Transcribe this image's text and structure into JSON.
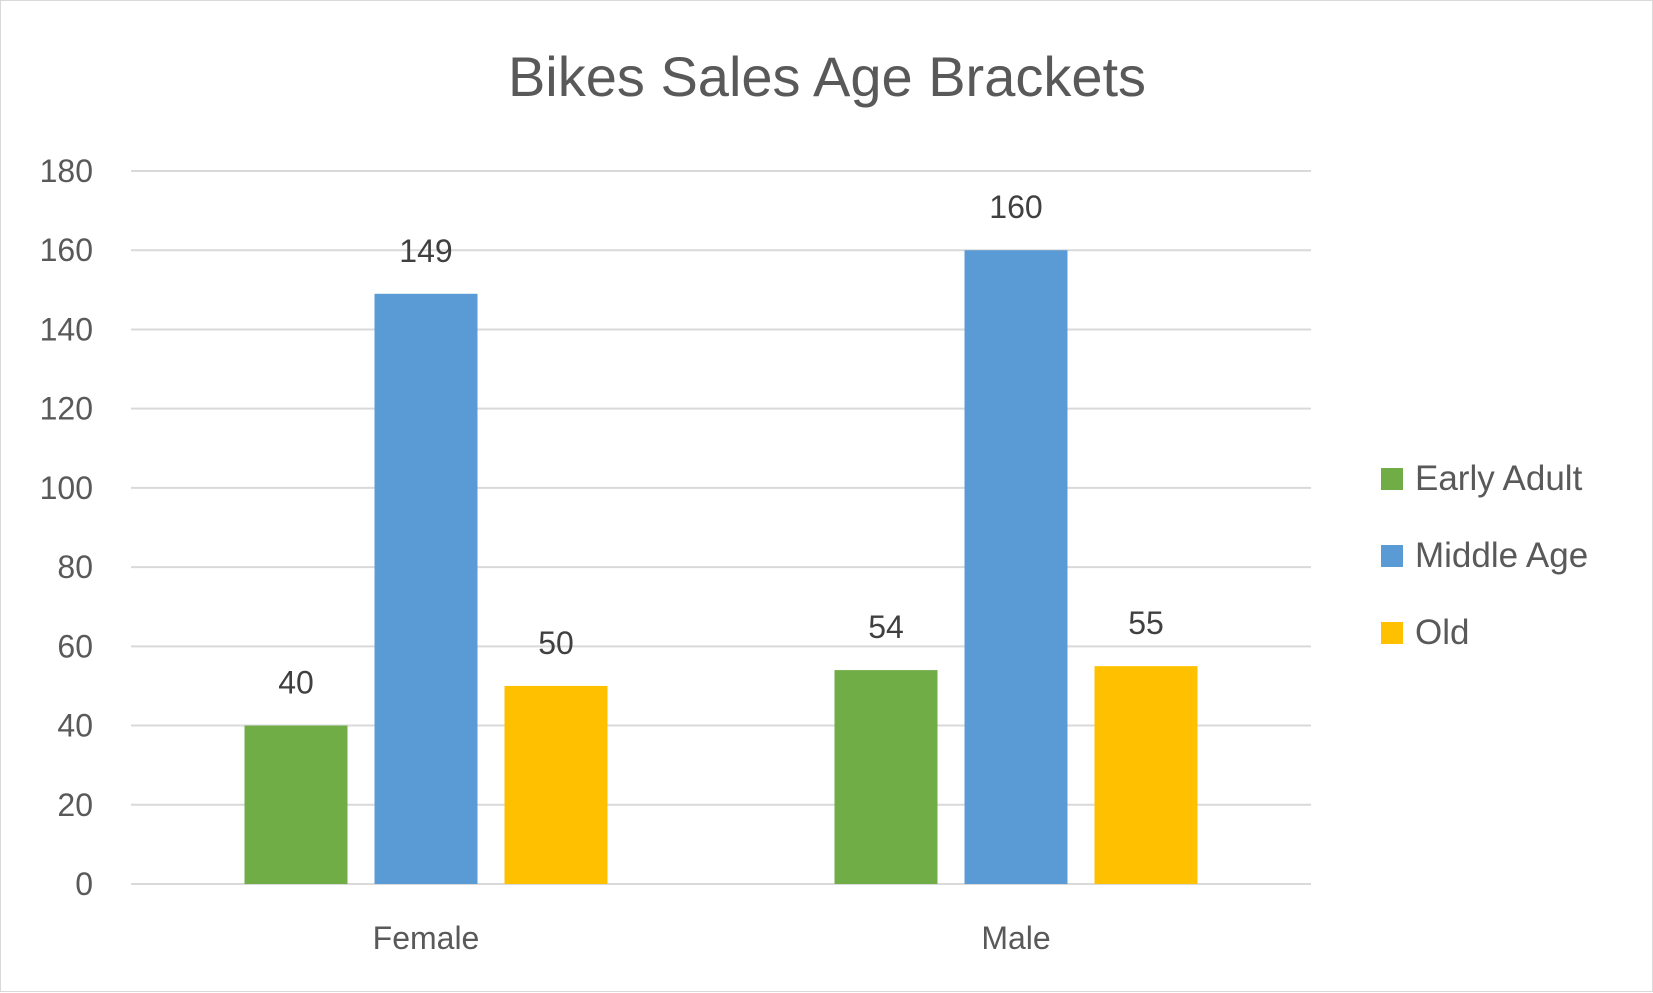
{
  "chart_data": {
    "type": "bar",
    "title": "Bikes Sales Age Brackets",
    "xlabel": "",
    "ylabel": "",
    "categories": [
      "Female",
      "Male"
    ],
    "series": [
      {
        "name": "Early Adult",
        "values": [
          40,
          54
        ],
        "color": "#70ad47"
      },
      {
        "name": "Middle Age",
        "values": [
          149,
          160
        ],
        "color": "#5b9bd5"
      },
      {
        "name": "Old",
        "values": [
          50,
          55
        ],
        "color": "#ffc000"
      }
    ],
    "ylim": [
      0,
      180
    ],
    "yticks": [
      0,
      20,
      40,
      60,
      80,
      100,
      120,
      140,
      160,
      180
    ],
    "grid": true,
    "legend_position": "right",
    "data_labels": true
  }
}
